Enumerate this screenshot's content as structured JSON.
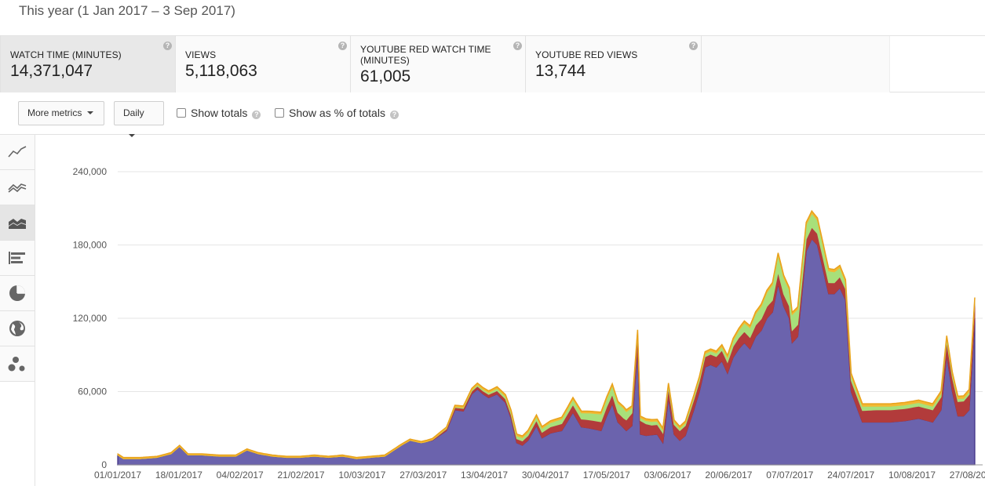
{
  "header": {
    "date_range": "This year (1 Jan 2017 – 3 Sep 2017)"
  },
  "metrics": [
    {
      "label": "WATCH TIME (MINUTES)",
      "value": "14,371,047",
      "active": true
    },
    {
      "label": "VIEWS",
      "value": "5,118,063",
      "active": false
    },
    {
      "label": "YOUTUBE RED WATCH TIME (MINUTES)",
      "value": "61,005",
      "active": false
    },
    {
      "label": "YOUTUBE RED VIEWS",
      "value": "13,744",
      "active": false
    }
  ],
  "toolbar": {
    "more_metrics": "More metrics",
    "interval": "Daily",
    "show_totals": "Show totals",
    "show_percent": "Show as % of totals"
  },
  "sidebar": {
    "items": [
      {
        "icon": "line-chart-icon",
        "active": false
      },
      {
        "icon": "multi-line-chart-icon",
        "active": false
      },
      {
        "icon": "stacked-area-chart-icon",
        "active": true
      },
      {
        "icon": "bar-chart-icon",
        "active": false
      },
      {
        "icon": "pie-chart-icon",
        "active": false
      },
      {
        "icon": "globe-map-icon",
        "active": false
      },
      {
        "icon": "bubble-chart-icon",
        "active": false
      }
    ]
  },
  "colors": {
    "series_main": "#6b63ad",
    "series_red": "#b23b3b",
    "series_green": "#a8e07a",
    "series_top": "#f2b933",
    "grid": "#e6e6e6"
  },
  "chart_data": {
    "type": "area",
    "stacked": true,
    "ylim": [
      0,
      240000
    ],
    "yticks": [
      0,
      60000,
      120000,
      180000,
      240000
    ],
    "ytick_labels": [
      "0",
      "60,000",
      "120,000",
      "180,000",
      "240,000"
    ],
    "xtick_labels": [
      "01/01/2017",
      "18/01/2017",
      "04/02/2017",
      "21/02/2017",
      "10/03/2017",
      "27/03/2017",
      "13/04/2017",
      "30/04/2017",
      "17/05/2017",
      "03/06/2017",
      "20/06/2017",
      "07/07/2017",
      "24/07/2017",
      "10/08/2017",
      "27/08/2017"
    ],
    "day_count": 246,
    "series": [
      {
        "color": "#6b63ad",
        "points": [
          [
            0,
            8000
          ],
          [
            2,
            5000
          ],
          [
            8,
            5000
          ],
          [
            14,
            6000
          ],
          [
            19,
            9000
          ],
          [
            22,
            15000
          ],
          [
            25,
            8000
          ],
          [
            30,
            8000
          ],
          [
            36,
            7000
          ],
          [
            42,
            7000
          ],
          [
            46,
            12000
          ],
          [
            50,
            9000
          ],
          [
            55,
            7000
          ],
          [
            60,
            6000
          ],
          [
            65,
            6000
          ],
          [
            70,
            7000
          ],
          [
            75,
            6000
          ],
          [
            80,
            7000
          ],
          [
            85,
            5000
          ],
          [
            90,
            6000
          ],
          [
            95,
            7000
          ],
          [
            101,
            16000
          ],
          [
            104,
            20000
          ],
          [
            108,
            18000
          ],
          [
            112,
            20000
          ],
          [
            117,
            28000
          ],
          [
            120,
            45000
          ],
          [
            123,
            44000
          ],
          [
            126,
            58000
          ],
          [
            128,
            62000
          ],
          [
            130,
            58000
          ],
          [
            132,
            55000
          ],
          [
            135,
            58000
          ],
          [
            138,
            51000
          ],
          [
            140,
            38000
          ],
          [
            142,
            18000
          ],
          [
            144,
            16000
          ],
          [
            146,
            20000
          ],
          [
            149,
            32000
          ],
          [
            151,
            22000
          ],
          [
            154,
            26000
          ],
          [
            158,
            28000
          ],
          [
            162,
            43000
          ],
          [
            165,
            31000
          ],
          [
            168,
            30000
          ],
          [
            172,
            28000
          ],
          [
            174,
            40000
          ],
          [
            176,
            50000
          ],
          [
            178,
            35000
          ],
          [
            181,
            28000
          ],
          [
            183,
            32000
          ],
          [
            185,
            95000
          ],
          [
            186,
            25000
          ],
          [
            188,
            24000
          ],
          [
            192,
            25000
          ],
          [
            194,
            18000
          ],
          [
            196,
            55000
          ],
          [
            198,
            25000
          ],
          [
            200,
            20000
          ],
          [
            202,
            24000
          ],
          [
            205,
            45000
          ],
          [
            207,
            60000
          ],
          [
            209,
            80000
          ],
          [
            211,
            82000
          ],
          [
            213,
            80000
          ],
          [
            215,
            85000
          ],
          [
            217,
            75000
          ],
          [
            219,
            88000
          ],
          [
            221,
            95000
          ],
          [
            223,
            100000
          ],
          [
            225,
            95000
          ],
          [
            227,
            105000
          ],
          [
            229,
            110000
          ],
          [
            231,
            120000
          ],
          [
            233,
            125000
          ],
          [
            235,
            148000
          ],
          [
            237,
            130000
          ],
          [
            239,
            120000
          ],
          [
            240,
            100000
          ],
          [
            242,
            105000
          ],
          [
            245,
            175000
          ],
          [
            247,
            185000
          ],
          [
            249,
            180000
          ],
          [
            251,
            160000
          ],
          [
            253,
            140000
          ],
          [
            255,
            140000
          ],
          [
            257,
            145000
          ],
          [
            259,
            135000
          ],
          [
            261,
            60000
          ],
          [
            265,
            35000
          ],
          [
            270,
            35000
          ],
          [
            275,
            35000
          ],
          [
            280,
            36000
          ],
          [
            285,
            38000
          ],
          [
            290,
            35000
          ],
          [
            293,
            45000
          ],
          [
            295,
            90000
          ],
          [
            297,
            60000
          ],
          [
            299,
            40000
          ],
          [
            301,
            40000
          ],
          [
            303,
            45000
          ],
          [
            305,
            120000
          ]
        ]
      },
      {
        "color": "#b23b3b",
        "points": [
          [
            0,
            0
          ],
          [
            100,
            0
          ],
          [
            110,
            0
          ],
          [
            120,
            2000
          ],
          [
            140,
            3000
          ],
          [
            160,
            6000
          ],
          [
            180,
            8000
          ],
          [
            185,
            12000
          ],
          [
            190,
            8000
          ],
          [
            200,
            8000
          ],
          [
            220,
            9000
          ],
          [
            240,
            10000
          ],
          [
            255,
            9000
          ],
          [
            261,
            9000
          ],
          [
            270,
            10000
          ],
          [
            290,
            10000
          ],
          [
            305,
            13000
          ]
        ]
      },
      {
        "color": "#a8e07a",
        "points": [
          [
            0,
            0
          ],
          [
            110,
            0
          ],
          [
            120,
            500
          ],
          [
            160,
            4000
          ],
          [
            180,
            8000
          ],
          [
            185,
            2000
          ],
          [
            190,
            3000
          ],
          [
            200,
            2000
          ],
          [
            215,
            3000
          ],
          [
            225,
            8000
          ],
          [
            235,
            14000
          ],
          [
            245,
            12000
          ],
          [
            255,
            9000
          ],
          [
            261,
            4000
          ],
          [
            270,
            3000
          ],
          [
            290,
            3000
          ],
          [
            305,
            2000
          ]
        ]
      },
      {
        "color": "#f2b933",
        "points": [
          [
            0,
            1000
          ],
          [
            100,
            1000
          ],
          [
            140,
            1500
          ],
          [
            200,
            1500
          ],
          [
            260,
            2000
          ],
          [
            305,
            2000
          ]
        ]
      }
    ]
  }
}
